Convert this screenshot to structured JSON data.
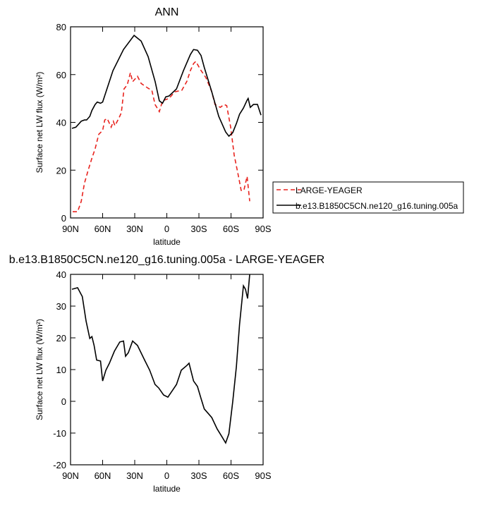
{
  "chart_data": [
    {
      "type": "line",
      "title": "ANN",
      "xlabel": "latitude",
      "ylabel": "Surface net LW flux (W/m²)",
      "xlim": [
        90,
        -90
      ],
      "xticks": [
        {
          "value": 90,
          "label": "90N"
        },
        {
          "value": 60,
          "label": "60N"
        },
        {
          "value": 30,
          "label": "30N"
        },
        0,
        {
          "value": -30,
          "label": "30S"
        },
        {
          "value": -60,
          "label": "60S"
        },
        {
          "value": -90,
          "label": "90S"
        }
      ],
      "ylim": [
        0,
        80
      ],
      "yticks": [
        0,
        20,
        40,
        60,
        80
      ],
      "legend": "outside-right",
      "series": [
        {
          "name": "LARGE-YEAGER",
          "color": "#e8231e",
          "dash": true,
          "x": [
            88,
            83.4,
            80,
            77,
            73.5,
            70,
            67,
            63.6,
            60,
            58,
            55.7,
            52,
            50,
            48.5,
            45,
            42.5,
            40,
            37,
            34,
            32,
            27.4,
            24,
            17.5,
            14,
            11,
            7,
            4,
            -2,
            -7.6,
            -14,
            -18.8,
            -22,
            -25,
            -27,
            -32,
            -36.6,
            -42,
            -45,
            -50,
            -53.7,
            -56,
            -59.7,
            -63,
            -67,
            -69.5,
            -72,
            -75,
            -77.5
          ],
          "values": [
            2.6,
            2.6,
            7,
            14.5,
            20,
            25,
            29,
            35,
            36.6,
            41,
            41.6,
            38,
            40.4,
            38.6,
            41.6,
            44,
            54,
            55.7,
            60.8,
            57,
            59.3,
            56.3,
            54.3,
            53.4,
            47.5,
            44.5,
            49,
            50,
            52.8,
            53.4,
            57.2,
            61.7,
            64.6,
            65.5,
            61.7,
            58.7,
            52.8,
            47.5,
            46.3,
            47.5,
            47,
            38,
            26.3,
            17.4,
            11.5,
            11.5,
            17.4,
            7
          ]
        },
        {
          "name": "b.e13.B1850C5CN.ne120_g16.tuning.005a",
          "color": "#000000",
          "dash": false,
          "x": [
            88.7,
            85,
            80,
            77,
            75,
            72,
            70,
            67,
            65,
            62,
            60,
            50.4,
            40.5,
            30.6,
            24,
            17.5,
            10.9,
            7,
            4,
            1,
            -2,
            -9,
            -15.5,
            -22,
            -25,
            -28.6,
            -32,
            -35,
            -42,
            -48.5,
            -55,
            -58,
            -61.6,
            -65,
            -68,
            -71.6,
            -75,
            -76,
            -78,
            -81,
            -84.7,
            -88
          ],
          "values": [
            37.5,
            38,
            40.5,
            41,
            41,
            42.5,
            45,
            47.5,
            48.5,
            48,
            48.5,
            61.6,
            70.5,
            76.4,
            74,
            67.5,
            57,
            49,
            48,
            50.7,
            51,
            54,
            61.6,
            68.4,
            70.5,
            70.2,
            68,
            63,
            52.8,
            42.5,
            36,
            34.2,
            35.7,
            39.5,
            43.4,
            46,
            49.3,
            50,
            46.3,
            47.5,
            47.5,
            43
          ]
        }
      ]
    },
    {
      "type": "line",
      "title": "b.e13.B1850C5CN.ne120_g16.tuning.005a - LARGE-YEAGER",
      "xlabel": "latitude",
      "ylabel": "Surface net LW flux (W/m²)",
      "xlim": [
        90,
        -90
      ],
      "xticks": [
        {
          "value": 90,
          "label": "90N"
        },
        {
          "value": 60,
          "label": "60N"
        },
        {
          "value": 30,
          "label": "30N"
        },
        0,
        {
          "value": -30,
          "label": "30S"
        },
        {
          "value": -60,
          "label": "60S"
        },
        {
          "value": -90,
          "label": "90S"
        }
      ],
      "ylim": [
        -20,
        40
      ],
      "yticks": [
        -20,
        -10,
        0,
        10,
        20,
        30,
        40
      ],
      "series": [
        {
          "color": "#000000",
          "dash": false,
          "x": [
            88.7,
            83.4,
            79,
            75.5,
            72,
            70,
            68,
            65.6,
            62,
            60,
            57,
            53.7,
            49,
            44,
            40.5,
            38.6,
            36,
            32,
            27.4,
            20.8,
            16,
            11,
            7.6,
            3,
            -1,
            -5.6,
            -9,
            -13.5,
            -18.8,
            -20.8,
            -25,
            -28.6,
            -32,
            -35,
            -42,
            -47,
            -51.8,
            -55,
            -58,
            -61.6,
            -65,
            -68,
            -71.6,
            -73.5,
            -75.5,
            -77.5
          ],
          "values": [
            35.3,
            35.8,
            33,
            25.3,
            19.8,
            20.4,
            17.6,
            13,
            12.7,
            6.4,
            9.8,
            12,
            15.8,
            18.7,
            19,
            14.2,
            15.3,
            19,
            17.6,
            13,
            9.8,
            5.3,
            4.2,
            2,
            1.3,
            3.6,
            5.3,
            9.8,
            11.3,
            12,
            6.4,
            4.7,
            0.9,
            -2.4,
            -5.1,
            -8.7,
            -11.3,
            -13.1,
            -10.2,
            -0.2,
            10.9,
            24.2,
            36.4,
            35.3,
            32.4,
            40
          ]
        }
      ]
    }
  ]
}
